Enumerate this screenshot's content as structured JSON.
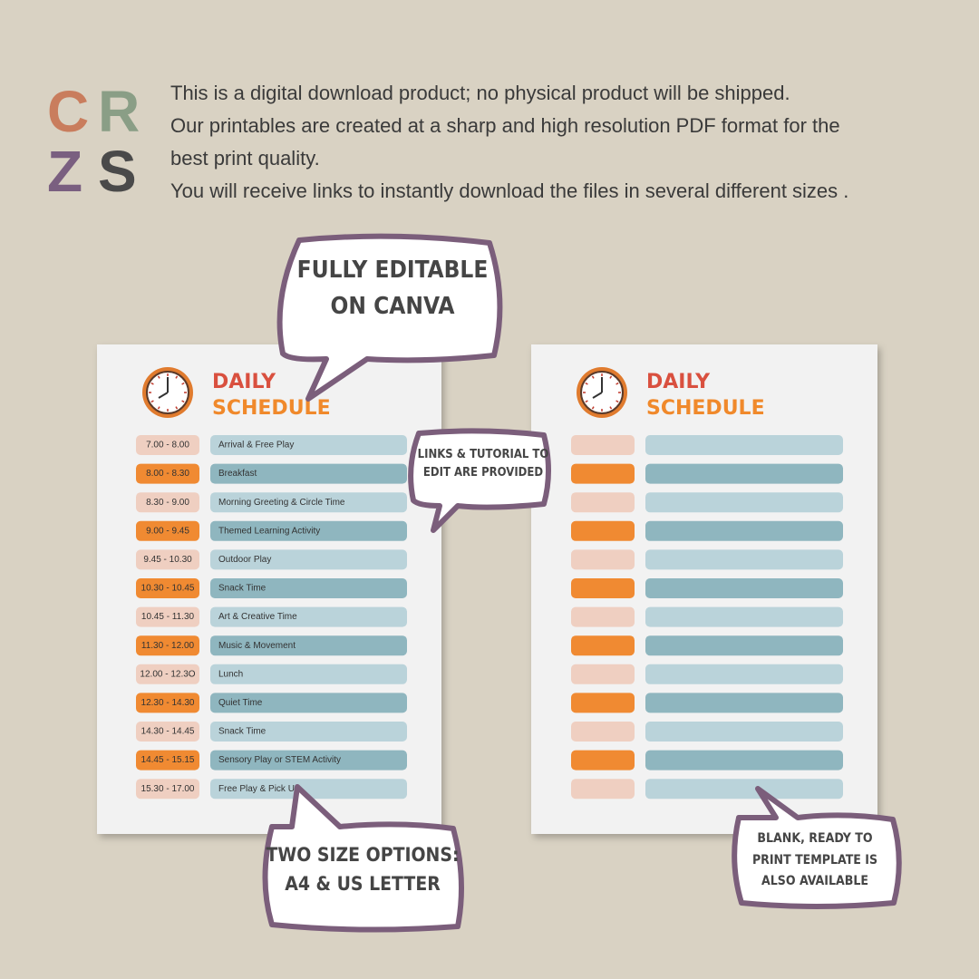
{
  "logo": {
    "letters": [
      "C",
      "R",
      "Z",
      "S"
    ]
  },
  "intro": {
    "lines": [
      "This is a digital download product; no physical product will be shipped.",
      "Our printables are created at a sharp and high resolution PDF format for the",
      "best print quality.",
      "You will receive links to instantly download the files in several different sizes ."
    ]
  },
  "callouts": [
    {
      "lines": [
        "FULLY EDITABLE",
        "ON CANVA"
      ]
    },
    {
      "lines": [
        "LINKS & TUTORIAL TO",
        "EDIT ARE PROVIDED"
      ]
    },
    {
      "lines": [
        "TWO SIZE OPTIONS:",
        "A4 & US LETTER"
      ]
    },
    {
      "lines": [
        "BLANK, READY TO",
        "PRINT TEMPLATE IS",
        "ALSO AVAILABLE"
      ]
    }
  ],
  "pages": [
    {
      "title": [
        "DAILY",
        "SCHEDULE"
      ],
      "rows": [
        {
          "time": "7.00 - 8.00",
          "activity": "Arrival & Free Play"
        },
        {
          "time": "8.00 - 8.30",
          "activity": "Breakfast"
        },
        {
          "time": "8.30 - 9.00",
          "activity": "Morning Greeting & Circle Time"
        },
        {
          "time": "9.00 - 9.45",
          "activity": "Themed Learning Activity"
        },
        {
          "time": "9.45 - 10.30",
          "activity": "Outdoor Play"
        },
        {
          "time": "10.30 - 10.45",
          "activity": "Snack Time"
        },
        {
          "time": "10.45 - 11.30",
          "activity": "Art & Creative Time"
        },
        {
          "time": "11.30 - 12.00",
          "activity": "Music & Movement"
        },
        {
          "time": "12.00 - 12.3O",
          "activity": "Lunch"
        },
        {
          "time": "12.30 - 14.30",
          "activity": "Quiet Time"
        },
        {
          "time": "14.30 - 14.45",
          "activity": "Snack Time"
        },
        {
          "time": "14.45 - 15.15",
          "activity": "Sensory Play or STEM Activity"
        },
        {
          "time": "15.30 - 17.00",
          "activity": "Free Play & Pick Up"
        }
      ]
    },
    {
      "title": [
        "DAILY",
        "SCHEDULE"
      ]
    }
  ]
}
